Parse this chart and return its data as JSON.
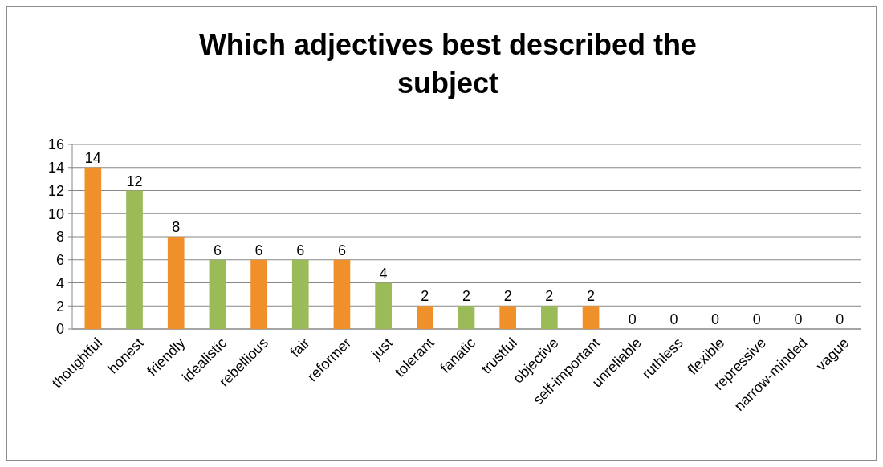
{
  "chart_data": {
    "type": "bar",
    "title": "Which adjectives best described the subject",
    "categories": [
      "thoughtful",
      "honest",
      "friendly",
      "idealistic",
      "rebellious",
      "fair",
      "reformer",
      "just",
      "tolerant",
      "fanatic",
      "trustful",
      "objective",
      "self-important",
      "unreliable",
      "ruthless",
      "flexible",
      "repressive",
      "narrow-minded",
      "vague"
    ],
    "values": [
      14,
      12,
      8,
      6,
      6,
      6,
      6,
      4,
      2,
      2,
      2,
      2,
      2,
      0,
      0,
      0,
      0,
      0,
      0
    ],
    "colors": [
      "#f0902a",
      "#9bbb59",
      "#f0902a",
      "#9bbb59",
      "#f0902a",
      "#9bbb59",
      "#f0902a",
      "#9bbb59",
      "#f0902a",
      "#9bbb59",
      "#f0902a",
      "#9bbb59",
      "#f0902a",
      "#9bbb59",
      "#f0902a",
      "#9bbb59",
      "#f0902a",
      "#9bbb59",
      "#f0902a"
    ],
    "ylim": [
      0,
      16
    ],
    "yticks": [
      0,
      2,
      4,
      6,
      8,
      10,
      12,
      14,
      16
    ],
    "grid": "y",
    "data_labels": true
  }
}
